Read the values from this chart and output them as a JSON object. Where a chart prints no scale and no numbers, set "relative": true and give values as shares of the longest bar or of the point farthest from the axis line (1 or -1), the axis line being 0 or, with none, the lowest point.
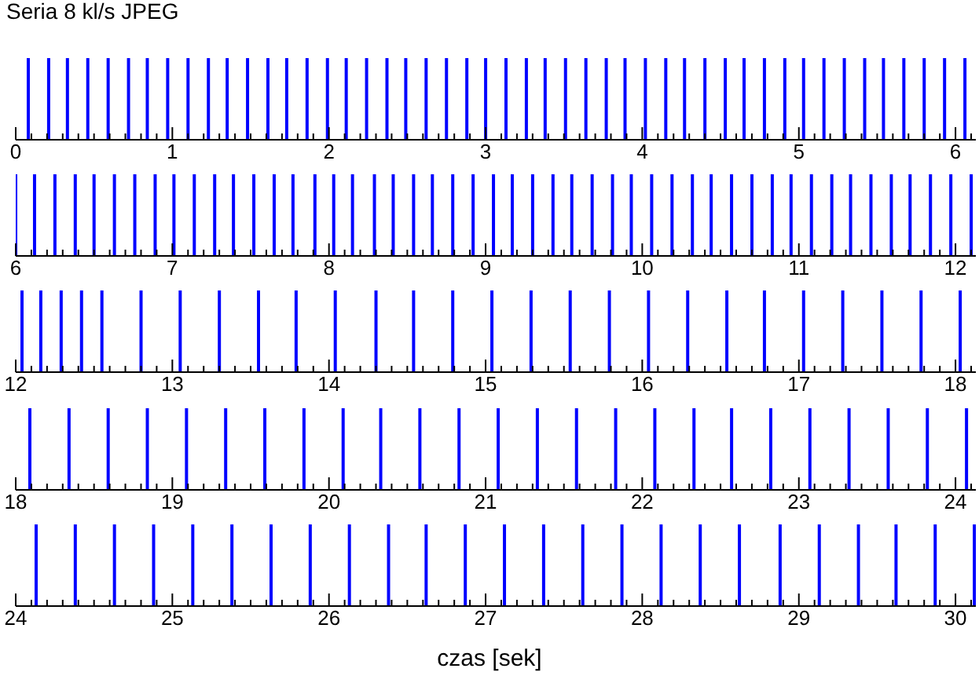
{
  "chart_data": [
    {
      "type": "bar",
      "title": "Seria 8 kl/s JPEG",
      "relative": true,
      "color": "#0000ff",
      "xlim": [
        0,
        6.13
      ],
      "x": [
        0.08,
        0.21,
        0.33,
        0.46,
        0.59,
        0.72,
        0.84,
        0.97,
        1.1,
        1.23,
        1.35,
        1.48,
        1.61,
        1.73,
        1.86,
        1.99,
        2.11,
        2.24,
        2.37,
        2.49,
        2.62,
        2.75,
        2.88,
        3.0,
        3.13,
        3.26,
        3.38,
        3.51,
        3.64,
        3.77,
        3.89,
        4.02,
        4.15,
        4.27,
        4.4,
        4.53,
        4.65,
        4.78,
        4.91,
        5.03,
        5.16,
        5.29,
        5.42,
        5.54,
        5.67,
        5.8,
        5.93,
        6.06
      ],
      "values": [
        1,
        1,
        1,
        1,
        1,
        1,
        1,
        1,
        1,
        1,
        1,
        1,
        1,
        1,
        1,
        1,
        1,
        1,
        1,
        1,
        1,
        1,
        1,
        1,
        1,
        1,
        1,
        1,
        1,
        1,
        1,
        1,
        1,
        1,
        1,
        1,
        1,
        1,
        1,
        1,
        1,
        1,
        1,
        1,
        1,
        1,
        1,
        1
      ],
      "xticks": [
        0,
        {
          "value": 0.1,
          "label": null
        },
        {
          "value": 0.2,
          "label": null
        },
        {
          "value": 0.3,
          "label": null
        },
        {
          "value": 0.4,
          "label": null
        },
        {
          "value": 0.5,
          "label": null
        },
        {
          "value": 0.6,
          "label": null
        },
        {
          "value": 0.7,
          "label": null
        },
        {
          "value": 0.8,
          "label": null
        },
        {
          "value": 0.9,
          "label": null
        },
        1,
        {
          "value": 1.1,
          "label": null
        },
        {
          "value": 1.2,
          "label": null
        },
        {
          "value": 1.3,
          "label": null
        },
        {
          "value": 1.4,
          "label": null
        },
        {
          "value": 1.5,
          "label": null
        },
        {
          "value": 1.6,
          "label": null
        },
        {
          "value": 1.7,
          "label": null
        },
        {
          "value": 1.8,
          "label": null
        },
        {
          "value": 1.9,
          "label": null
        },
        2,
        {
          "value": 2.1,
          "label": null
        },
        {
          "value": 2.2,
          "label": null
        },
        {
          "value": 2.3,
          "label": null
        },
        {
          "value": 2.4,
          "label": null
        },
        {
          "value": 2.5,
          "label": null
        },
        {
          "value": 2.6,
          "label": null
        },
        {
          "value": 2.7,
          "label": null
        },
        {
          "value": 2.8,
          "label": null
        },
        {
          "value": 2.9,
          "label": null
        },
        3,
        {
          "value": 3.1,
          "label": null
        },
        {
          "value": 3.2,
          "label": null
        },
        {
          "value": 3.3,
          "label": null
        },
        {
          "value": 3.4,
          "label": null
        },
        {
          "value": 3.5,
          "label": null
        },
        {
          "value": 3.6,
          "label": null
        },
        {
          "value": 3.7,
          "label": null
        },
        {
          "value": 3.8,
          "label": null
        },
        {
          "value": 3.9,
          "label": null
        },
        4,
        {
          "value": 4.1,
          "label": null
        },
        {
          "value": 4.2,
          "label": null
        },
        {
          "value": 4.3,
          "label": null
        },
        {
          "value": 4.4,
          "label": null
        },
        {
          "value": 4.5,
          "label": null
        },
        {
          "value": 4.6,
          "label": null
        },
        {
          "value": 4.7,
          "label": null
        },
        {
          "value": 4.8,
          "label": null
        },
        {
          "value": 4.9,
          "label": null
        },
        5,
        {
          "value": 5.1,
          "label": null
        },
        {
          "value": 5.2,
          "label": null
        },
        {
          "value": 5.3,
          "label": null
        },
        {
          "value": 5.4,
          "label": null
        },
        {
          "value": 5.5,
          "label": null
        },
        {
          "value": 5.6,
          "label": null
        },
        {
          "value": 5.7,
          "label": null
        },
        {
          "value": 5.8,
          "label": null
        },
        {
          "value": 5.9,
          "label": null
        },
        6,
        {
          "value": 6.1,
          "label": null
        }
      ]
    },
    {
      "type": "bar",
      "relative": true,
      "color": "#0000ff",
      "xlim": [
        6,
        12.13
      ],
      "x": [
        6.0,
        6.12,
        6.25,
        6.38,
        6.5,
        6.63,
        6.76,
        6.89,
        7.01,
        7.14,
        7.27,
        7.39,
        7.52,
        7.65,
        7.77,
        7.91,
        8.03,
        8.15,
        8.29,
        8.41,
        8.54,
        8.66,
        8.79,
        8.92,
        9.05,
        9.17,
        9.3,
        9.43,
        9.55,
        9.68,
        9.81,
        9.93,
        10.06,
        10.19,
        10.32,
        10.44,
        10.57,
        10.7,
        10.83,
        10.95,
        11.08,
        11.21,
        11.33,
        11.46,
        11.59,
        11.71,
        11.84,
        11.97,
        12.1
      ],
      "values": [
        1,
        1,
        1,
        1,
        1,
        1,
        1,
        1,
        1,
        1,
        1,
        1,
        1,
        1,
        1,
        1,
        1,
        1,
        1,
        1,
        1,
        1,
        1,
        1,
        1,
        1,
        1,
        1,
        1,
        1,
        1,
        1,
        1,
        1,
        1,
        1,
        1,
        1,
        1,
        1,
        1,
        1,
        1,
        1,
        1,
        1,
        1,
        1,
        1
      ],
      "xticks": [
        6,
        {
          "value": 6.1,
          "label": null
        },
        {
          "value": 6.2,
          "label": null
        },
        {
          "value": 6.3,
          "label": null
        },
        {
          "value": 6.4,
          "label": null
        },
        {
          "value": 6.5,
          "label": null
        },
        {
          "value": 6.6,
          "label": null
        },
        {
          "value": 6.7,
          "label": null
        },
        {
          "value": 6.8,
          "label": null
        },
        {
          "value": 6.9,
          "label": null
        },
        7,
        {
          "value": 7.1,
          "label": null
        },
        {
          "value": 7.2,
          "label": null
        },
        {
          "value": 7.3,
          "label": null
        },
        {
          "value": 7.4,
          "label": null
        },
        {
          "value": 7.5,
          "label": null
        },
        {
          "value": 7.6,
          "label": null
        },
        {
          "value": 7.7,
          "label": null
        },
        {
          "value": 7.8,
          "label": null
        },
        {
          "value": 7.9,
          "label": null
        },
        8,
        {
          "value": 8.1,
          "label": null
        },
        {
          "value": 8.2,
          "label": null
        },
        {
          "value": 8.3,
          "label": null
        },
        {
          "value": 8.4,
          "label": null
        },
        {
          "value": 8.5,
          "label": null
        },
        {
          "value": 8.6,
          "label": null
        },
        {
          "value": 8.7,
          "label": null
        },
        {
          "value": 8.8,
          "label": null
        },
        {
          "value": 8.9,
          "label": null
        },
        9,
        {
          "value": 9.1,
          "label": null
        },
        {
          "value": 9.2,
          "label": null
        },
        {
          "value": 9.3,
          "label": null
        },
        {
          "value": 9.4,
          "label": null
        },
        {
          "value": 9.5,
          "label": null
        },
        {
          "value": 9.6,
          "label": null
        },
        {
          "value": 9.7,
          "label": null
        },
        {
          "value": 9.8,
          "label": null
        },
        {
          "value": 9.9,
          "label": null
        },
        10,
        {
          "value": 10.1,
          "label": null
        },
        {
          "value": 10.2,
          "label": null
        },
        {
          "value": 10.3,
          "label": null
        },
        {
          "value": 10.4,
          "label": null
        },
        {
          "value": 10.5,
          "label": null
        },
        {
          "value": 10.6,
          "label": null
        },
        {
          "value": 10.7,
          "label": null
        },
        {
          "value": 10.8,
          "label": null
        },
        {
          "value": 10.9,
          "label": null
        },
        11,
        {
          "value": 11.1,
          "label": null
        },
        {
          "value": 11.2,
          "label": null
        },
        {
          "value": 11.3,
          "label": null
        },
        {
          "value": 11.4,
          "label": null
        },
        {
          "value": 11.5,
          "label": null
        },
        {
          "value": 11.6,
          "label": null
        },
        {
          "value": 11.7,
          "label": null
        },
        {
          "value": 11.8,
          "label": null
        },
        {
          "value": 11.9,
          "label": null
        },
        12,
        {
          "value": 12.1,
          "label": null
        }
      ]
    },
    {
      "type": "bar",
      "relative": true,
      "color": "#0000ff",
      "xlim": [
        12,
        18.13
      ],
      "x": [
        12.04,
        12.16,
        12.29,
        12.42,
        12.55,
        12.8,
        13.05,
        13.3,
        13.55,
        13.79,
        14.04,
        14.3,
        14.54,
        14.79,
        15.04,
        15.29,
        15.54,
        15.79,
        16.04,
        16.29,
        16.54,
        16.78,
        17.03,
        17.28,
        17.53,
        17.78,
        18.03
      ],
      "values": [
        1,
        1,
        1,
        1,
        1,
        1,
        1,
        1,
        1,
        1,
        1,
        1,
        1,
        1,
        1,
        1,
        1,
        1,
        1,
        1,
        1,
        1,
        1,
        1,
        1,
        1,
        1
      ],
      "xticks": [
        12,
        {
          "value": 12.1,
          "label": null
        },
        {
          "value": 12.2,
          "label": null
        },
        {
          "value": 12.3,
          "label": null
        },
        {
          "value": 12.4,
          "label": null
        },
        {
          "value": 12.5,
          "label": null
        },
        {
          "value": 12.6,
          "label": null
        },
        {
          "value": 12.7,
          "label": null
        },
        {
          "value": 12.8,
          "label": null
        },
        {
          "value": 12.9,
          "label": null
        },
        13,
        {
          "value": 13.1,
          "label": null
        },
        {
          "value": 13.2,
          "label": null
        },
        {
          "value": 13.3,
          "label": null
        },
        {
          "value": 13.4,
          "label": null
        },
        {
          "value": 13.5,
          "label": null
        },
        {
          "value": 13.6,
          "label": null
        },
        {
          "value": 13.7,
          "label": null
        },
        {
          "value": 13.8,
          "label": null
        },
        {
          "value": 13.9,
          "label": null
        },
        14,
        {
          "value": 14.1,
          "label": null
        },
        {
          "value": 14.2,
          "label": null
        },
        {
          "value": 14.3,
          "label": null
        },
        {
          "value": 14.4,
          "label": null
        },
        {
          "value": 14.5,
          "label": null
        },
        {
          "value": 14.6,
          "label": null
        },
        {
          "value": 14.7,
          "label": null
        },
        {
          "value": 14.8,
          "label": null
        },
        {
          "value": 14.9,
          "label": null
        },
        15,
        {
          "value": 15.1,
          "label": null
        },
        {
          "value": 15.2,
          "label": null
        },
        {
          "value": 15.3,
          "label": null
        },
        {
          "value": 15.4,
          "label": null
        },
        {
          "value": 15.5,
          "label": null
        },
        {
          "value": 15.6,
          "label": null
        },
        {
          "value": 15.7,
          "label": null
        },
        {
          "value": 15.8,
          "label": null
        },
        {
          "value": 15.9,
          "label": null
        },
        16,
        {
          "value": 16.1,
          "label": null
        },
        {
          "value": 16.2,
          "label": null
        },
        {
          "value": 16.3,
          "label": null
        },
        {
          "value": 16.4,
          "label": null
        },
        {
          "value": 16.5,
          "label": null
        },
        {
          "value": 16.6,
          "label": null
        },
        {
          "value": 16.7,
          "label": null
        },
        {
          "value": 16.8,
          "label": null
        },
        {
          "value": 16.9,
          "label": null
        },
        17,
        {
          "value": 17.1,
          "label": null
        },
        {
          "value": 17.2,
          "label": null
        },
        {
          "value": 17.3,
          "label": null
        },
        {
          "value": 17.4,
          "label": null
        },
        {
          "value": 17.5,
          "label": null
        },
        {
          "value": 17.6,
          "label": null
        },
        {
          "value": 17.7,
          "label": null
        },
        {
          "value": 17.8,
          "label": null
        },
        {
          "value": 17.9,
          "label": null
        },
        18,
        {
          "value": 18.1,
          "label": null
        }
      ]
    },
    {
      "type": "bar",
      "relative": true,
      "color": "#0000ff",
      "xlim": [
        18,
        24.13
      ],
      "x": [
        18.09,
        18.34,
        18.59,
        18.84,
        19.09,
        19.34,
        19.59,
        19.84,
        20.09,
        20.33,
        20.58,
        20.83,
        21.08,
        21.33,
        21.58,
        21.83,
        22.08,
        22.33,
        22.57,
        22.82,
        23.07,
        23.32,
        23.57,
        23.82,
        24.07
      ],
      "values": [
        1,
        1,
        1,
        1,
        1,
        1,
        1,
        1,
        1,
        1,
        1,
        1,
        1,
        1,
        1,
        1,
        1,
        1,
        1,
        1,
        1,
        1,
        1,
        1,
        1
      ],
      "xticks": [
        18,
        {
          "value": 18.1,
          "label": null
        },
        {
          "value": 18.2,
          "label": null
        },
        {
          "value": 18.3,
          "label": null
        },
        {
          "value": 18.4,
          "label": null
        },
        {
          "value": 18.5,
          "label": null
        },
        {
          "value": 18.6,
          "label": null
        },
        {
          "value": 18.7,
          "label": null
        },
        {
          "value": 18.8,
          "label": null
        },
        {
          "value": 18.9,
          "label": null
        },
        19,
        {
          "value": 19.1,
          "label": null
        },
        {
          "value": 19.2,
          "label": null
        },
        {
          "value": 19.3,
          "label": null
        },
        {
          "value": 19.4,
          "label": null
        },
        {
          "value": 19.5,
          "label": null
        },
        {
          "value": 19.6,
          "label": null
        },
        {
          "value": 19.7,
          "label": null
        },
        {
          "value": 19.8,
          "label": null
        },
        {
          "value": 19.9,
          "label": null
        },
        20,
        {
          "value": 20.1,
          "label": null
        },
        {
          "value": 20.2,
          "label": null
        },
        {
          "value": 20.3,
          "label": null
        },
        {
          "value": 20.4,
          "label": null
        },
        {
          "value": 20.5,
          "label": null
        },
        {
          "value": 20.6,
          "label": null
        },
        {
          "value": 20.7,
          "label": null
        },
        {
          "value": 20.8,
          "label": null
        },
        {
          "value": 20.9,
          "label": null
        },
        21,
        {
          "value": 21.1,
          "label": null
        },
        {
          "value": 21.2,
          "label": null
        },
        {
          "value": 21.3,
          "label": null
        },
        {
          "value": 21.4,
          "label": null
        },
        {
          "value": 21.5,
          "label": null
        },
        {
          "value": 21.6,
          "label": null
        },
        {
          "value": 21.7,
          "label": null
        },
        {
          "value": 21.8,
          "label": null
        },
        {
          "value": 21.9,
          "label": null
        },
        22,
        {
          "value": 22.1,
          "label": null
        },
        {
          "value": 22.2,
          "label": null
        },
        {
          "value": 22.3,
          "label": null
        },
        {
          "value": 22.4,
          "label": null
        },
        {
          "value": 22.5,
          "label": null
        },
        {
          "value": 22.6,
          "label": null
        },
        {
          "value": 22.7,
          "label": null
        },
        {
          "value": 22.8,
          "label": null
        },
        {
          "value": 22.9,
          "label": null
        },
        23,
        {
          "value": 23.1,
          "label": null
        },
        {
          "value": 23.2,
          "label": null
        },
        {
          "value": 23.3,
          "label": null
        },
        {
          "value": 23.4,
          "label": null
        },
        {
          "value": 23.5,
          "label": null
        },
        {
          "value": 23.6,
          "label": null
        },
        {
          "value": 23.7,
          "label": null
        },
        {
          "value": 23.8,
          "label": null
        },
        {
          "value": 23.9,
          "label": null
        },
        24,
        {
          "value": 24.1,
          "label": null
        }
      ]
    },
    {
      "type": "bar",
      "xlabel": "czas [sek]",
      "relative": true,
      "color": "#0000ff",
      "xlim": [
        24,
        30.13
      ],
      "x": [
        24.13,
        24.38,
        24.63,
        24.88,
        25.13,
        25.38,
        25.63,
        25.88,
        26.13,
        26.38,
        26.62,
        26.87,
        27.12,
        27.37,
        27.62,
        27.87,
        28.12,
        28.37,
        28.62,
        28.88,
        29.13,
        29.38,
        29.62,
        29.87,
        30.12
      ],
      "values": [
        1,
        1,
        1,
        1,
        1,
        1,
        1,
        1,
        1,
        1,
        1,
        1,
        1,
        1,
        1,
        1,
        1,
        1,
        1,
        1,
        1,
        1,
        1,
        1,
        1
      ],
      "xticks": [
        24,
        {
          "value": 24.1,
          "label": null
        },
        {
          "value": 24.2,
          "label": null
        },
        {
          "value": 24.3,
          "label": null
        },
        {
          "value": 24.4,
          "label": null
        },
        {
          "value": 24.5,
          "label": null
        },
        {
          "value": 24.6,
          "label": null
        },
        {
          "value": 24.7,
          "label": null
        },
        {
          "value": 24.8,
          "label": null
        },
        {
          "value": 24.9,
          "label": null
        },
        25,
        {
          "value": 25.1,
          "label": null
        },
        {
          "value": 25.2,
          "label": null
        },
        {
          "value": 25.3,
          "label": null
        },
        {
          "value": 25.4,
          "label": null
        },
        {
          "value": 25.5,
          "label": null
        },
        {
          "value": 25.6,
          "label": null
        },
        {
          "value": 25.7,
          "label": null
        },
        {
          "value": 25.8,
          "label": null
        },
        {
          "value": 25.9,
          "label": null
        },
        26,
        {
          "value": 26.1,
          "label": null
        },
        {
          "value": 26.2,
          "label": null
        },
        {
          "value": 26.3,
          "label": null
        },
        {
          "value": 26.4,
          "label": null
        },
        {
          "value": 26.5,
          "label": null
        },
        {
          "value": 26.6,
          "label": null
        },
        {
          "value": 26.7,
          "label": null
        },
        {
          "value": 26.8,
          "label": null
        },
        {
          "value": 26.9,
          "label": null
        },
        27,
        {
          "value": 27.1,
          "label": null
        },
        {
          "value": 27.2,
          "label": null
        },
        {
          "value": 27.3,
          "label": null
        },
        {
          "value": 27.4,
          "label": null
        },
        {
          "value": 27.5,
          "label": null
        },
        {
          "value": 27.6,
          "label": null
        },
        {
          "value": 27.7,
          "label": null
        },
        {
          "value": 27.8,
          "label": null
        },
        {
          "value": 27.9,
          "label": null
        },
        28,
        {
          "value": 28.1,
          "label": null
        },
        {
          "value": 28.2,
          "label": null
        },
        {
          "value": 28.3,
          "label": null
        },
        {
          "value": 28.4,
          "label": null
        },
        {
          "value": 28.5,
          "label": null
        },
        {
          "value": 28.6,
          "label": null
        },
        {
          "value": 28.7,
          "label": null
        },
        {
          "value": 28.8,
          "label": null
        },
        {
          "value": 28.9,
          "label": null
        },
        29,
        {
          "value": 29.1,
          "label": null
        },
        {
          "value": 29.2,
          "label": null
        },
        {
          "value": 29.3,
          "label": null
        },
        {
          "value": 29.4,
          "label": null
        },
        {
          "value": 29.5,
          "label": null
        },
        {
          "value": 29.6,
          "label": null
        },
        {
          "value": 29.7,
          "label": null
        },
        {
          "value": 29.8,
          "label": null
        },
        {
          "value": 29.9,
          "label": null
        },
        30,
        {
          "value": 30.1,
          "label": null
        }
      ]
    }
  ]
}
